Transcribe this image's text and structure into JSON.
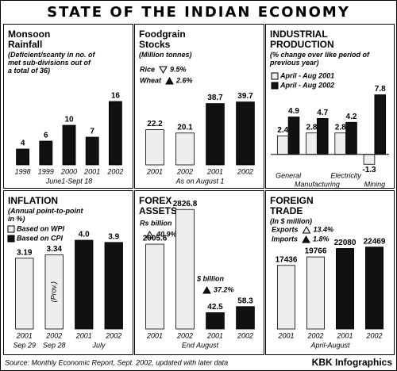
{
  "title": "STATE OF THE INDIAN ECONOMY",
  "source": "Source: Monthly Economic Report, Sept. 2002, updated with later data",
  "credit": "KBK Infographics",
  "chart_data": [
    {
      "type": "bar",
      "title": "Monsoon Rainfall",
      "subtitle": "(Deficient/scanty in no. of met sub-divisions out of a total of 36)",
      "categories": [
        "1998",
        "1999",
        "2000",
        "2001",
        "2002"
      ],
      "series": [
        {
          "color": "#111111",
          "values": [
            4,
            6,
            10,
            7,
            16
          ]
        }
      ],
      "xlabel": "June1-Sept 18",
      "ylim": [
        0,
        20
      ]
    },
    {
      "type": "bar",
      "title": "Foodgrain Stocks",
      "subtitle": "(Million tonnes)",
      "series": [
        {
          "name": "Rice",
          "change": "9.5%",
          "marker": "down",
          "color": "#eeeeee",
          "categories": [
            "2001",
            "2002"
          ],
          "values": [
            22.2,
            20.1
          ]
        },
        {
          "name": "Wheat",
          "change": "2.6%",
          "marker": "up",
          "color": "#111111",
          "categories": [
            "2001",
            "2002"
          ],
          "values": [
            38.7,
            39.7
          ]
        }
      ],
      "xlabel": "As on August 1",
      "ylim": [
        0,
        45
      ]
    },
    {
      "type": "bar",
      "title": "INDUSTRIAL PRODUCTION",
      "subtitle": "(% change over like period of previous year)",
      "categories": [
        "General",
        "Manufacturing",
        "Electricity",
        "Mining"
      ],
      "series": [
        {
          "name": "April - Aug 2001",
          "marker": "square",
          "color": "#eeeeee",
          "values": [
            2.4,
            2.8,
            2.8,
            -1.3
          ]
        },
        {
          "name": "April - Aug 2002",
          "marker": "square",
          "color": "#111111",
          "values": [
            4.9,
            4.7,
            4.2,
            7.8
          ]
        }
      ],
      "ylim": [
        -2,
        9
      ]
    },
    {
      "type": "bar",
      "title": "INFLATION",
      "subtitle": "(Annual point-to-point in %)",
      "series": [
        {
          "name": "Based on WPI",
          "marker": "square",
          "color": "#eeeeee",
          "categories": [
            "2001",
            "2002"
          ],
          "dates": [
            "Sep 29",
            "Sep 28"
          ],
          "notes": [
            null,
            "(Prov.)"
          ],
          "values": [
            3.19,
            3.34
          ]
        },
        {
          "name": "Based on CPI",
          "marker": "square",
          "color": "#111111",
          "categories": [
            "2001",
            "2002"
          ],
          "xlabel": "July",
          "values": [
            4,
            3.9
          ],
          "value_labels": [
            "4.0",
            "3.9"
          ]
        }
      ],
      "ylim": [
        0,
        5
      ]
    },
    {
      "type": "bar",
      "title": "FOREX ASSETS",
      "series": [
        {
          "name": "Rs billion",
          "change": "40.9%",
          "marker": "up",
          "color": "#eeeeee",
          "categories": [
            "2001",
            "2002"
          ],
          "values": [
            2005.6,
            2826.8
          ]
        },
        {
          "name": "$ billion",
          "change": "37.2%",
          "marker": "up",
          "color": "#111111",
          "axis": "y2",
          "categories": [
            "2001",
            "2002"
          ],
          "values": [
            42.5,
            58.3
          ]
        }
      ],
      "xlabel": "End August",
      "ylim": [
        0,
        3000
      ],
      "y2lim": [
        0,
        330
      ]
    },
    {
      "type": "bar",
      "title": "FOREIGN TRADE",
      "subtitle": "(In $ million)",
      "series": [
        {
          "name": "Exports",
          "change": "13.4%",
          "marker": "up",
          "color": "#eeeeee",
          "categories": [
            "2001",
            "2002"
          ],
          "values": [
            17436,
            19766
          ]
        },
        {
          "name": "Imports",
          "change": "1.8%",
          "marker": "up",
          "color": "#111111",
          "categories": [
            "2001",
            "2002"
          ],
          "values": [
            22080,
            22469
          ]
        }
      ],
      "xlabel": "April-August",
      "ylim": [
        0,
        25000
      ]
    }
  ]
}
